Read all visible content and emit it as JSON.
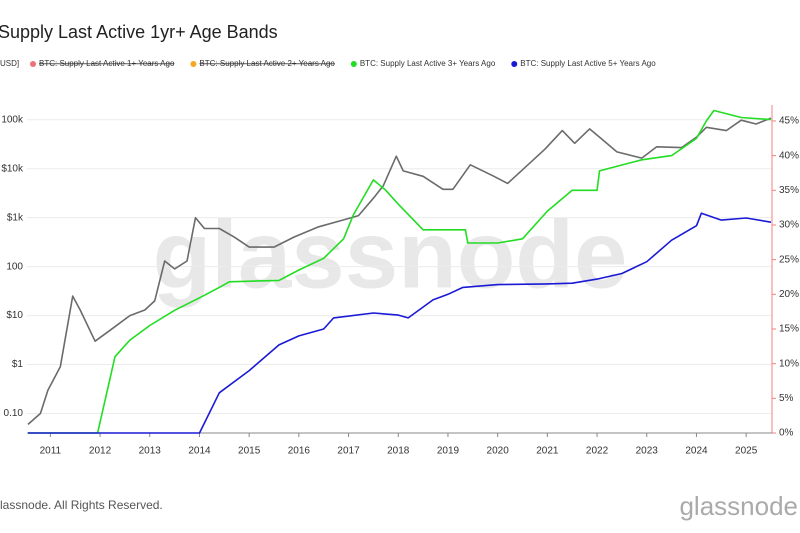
{
  "chart_data": {
    "type": "line",
    "title": "Supply Last Active 1yr+ Age Bands",
    "y_label": "USD]",
    "watermark": "glassnode",
    "footer": "lassnode. All Rights Reserved.",
    "logo": "glassnode",
    "hidden_series": [
      {
        "name": "BTC: Supply Last Active 1+ Years Ago",
        "color": "#f07178"
      },
      {
        "name": "BTC: Supply Last Active 2+ Years Ago",
        "color": "#f5a623"
      }
    ],
    "series": [
      {
        "color": "#6b6b6b",
        "axis": "y",
        "x": [
          2010.55,
          2010.8,
          2010.95,
          2011.2,
          2011.45,
          2011.6,
          2011.9,
          2012.2,
          2012.6,
          2012.9,
          2013.1,
          2013.3,
          2013.5,
          2013.75,
          2013.92,
          2014.1,
          2014.4,
          2014.7,
          2015.0,
          2015.5,
          2015.9,
          2016.4,
          2016.9,
          2017.2,
          2017.5,
          2017.7,
          2017.96,
          2018.1,
          2018.5,
          2018.9,
          2019.1,
          2019.45,
          2019.9,
          2020.2,
          2020.5,
          2020.95,
          2021.3,
          2021.55,
          2021.85,
          2022.1,
          2022.4,
          2022.9,
          2023.2,
          2023.7,
          2024.0,
          2024.2,
          2024.6,
          2024.9,
          2025.2,
          2025.5
        ],
        "values": [
          0.06,
          0.1,
          0.3,
          0.9,
          25,
          13,
          3,
          5,
          10,
          13,
          20,
          130,
          90,
          130,
          1000,
          600,
          600,
          400,
          250,
          250,
          400,
          650,
          900,
          1100,
          2500,
          4500,
          18000,
          9000,
          7000,
          3800,
          3800,
          12000,
          7200,
          5000,
          9500,
          25000,
          60000,
          33000,
          65000,
          40000,
          22000,
          16500,
          28000,
          27000,
          44000,
          70000,
          60000,
          98000,
          82000,
          108000
        ]
      },
      {
        "name": "BTC: Supply Last Active 3+ Years Ago",
        "color": "#22dd22",
        "axis": "y2",
        "x": [
          2010.55,
          2011.95,
          2012.3,
          2012.6,
          2013.0,
          2013.5,
          2014.0,
          2014.4,
          2014.6,
          2015.6,
          2016.0,
          2016.5,
          2016.9,
          2017.1,
          2017.5,
          2017.75,
          2018.0,
          2018.5,
          2019.0,
          2019.35,
          2019.4,
          2020.0,
          2020.5,
          2021.0,
          2021.5,
          2022.0,
          2022.05,
          2022.9,
          2023.5,
          2024.0,
          2024.2,
          2024.35,
          2024.9,
          2025.5
        ],
        "values": [
          0,
          0,
          11,
          13.4,
          15.5,
          17.7,
          19.5,
          21,
          21.8,
          22,
          23.5,
          25.2,
          28,
          31.5,
          36.5,
          35,
          33,
          29.3,
          29.3,
          29.3,
          27.4,
          27.4,
          28,
          32,
          35,
          35,
          37.8,
          39.4,
          40,
          42.5,
          45,
          46.5,
          45.5,
          45.2
        ]
      },
      {
        "name": "BTC: Supply Last Active 5+ Years Ago",
        "color": "#1a1ad6",
        "axis": "y2",
        "x": [
          2010.55,
          2014.0,
          2014.4,
          2015.0,
          2015.6,
          2016.0,
          2016.5,
          2016.7,
          2017.5,
          2018.0,
          2018.2,
          2018.7,
          2019.0,
          2019.3,
          2020.0,
          2021.0,
          2021.5,
          2022.0,
          2022.5,
          2023.0,
          2023.5,
          2024.0,
          2024.1,
          2024.5,
          2025.0,
          2025.5
        ],
        "values": [
          0,
          0,
          5.8,
          9,
          12.7,
          14,
          15,
          16.6,
          17.3,
          17,
          16.6,
          19.2,
          20,
          21,
          21.4,
          21.5,
          21.6,
          22.2,
          23,
          24.7,
          27.8,
          29.9,
          31.7,
          30.7,
          31,
          30.4
        ]
      }
    ],
    "xlim": [
      2010.53,
      2025.52
    ],
    "xticks": [
      2011,
      2012,
      2013,
      2014,
      2015,
      2016,
      2017,
      2018,
      2019,
      2020,
      2021,
      2022,
      2023,
      2024,
      2025
    ],
    "ylog": true,
    "ylim": [
      0.04,
      200000
    ],
    "yticks": [
      {
        "value": 0.1,
        "label": "0.10"
      },
      {
        "value": 1,
        "label": "$1"
      },
      {
        "value": 10,
        "label": "$10"
      },
      100,
      {
        "value": 1000,
        "label": "$1k"
      },
      {
        "value": 10000,
        "label": "$10k"
      },
      {
        "value": 100000,
        "label": "100k"
      }
    ],
    "y2lim": [
      0,
      47.3
    ],
    "y2ticks": [
      {
        "value": 0,
        "label": "0%"
      },
      {
        "value": 5,
        "label": "5%"
      },
      {
        "value": 10,
        "label": "10%"
      },
      {
        "value": 15,
        "label": "15%"
      },
      {
        "value": 20,
        "label": "20%"
      },
      {
        "value": 25,
        "label": "25%"
      },
      {
        "value": 30,
        "label": "30%"
      },
      {
        "value": 35,
        "label": "35%"
      },
      {
        "value": 40,
        "label": "40%"
      },
      {
        "value": 45,
        "label": "45%"
      }
    ],
    "grid": true
  }
}
